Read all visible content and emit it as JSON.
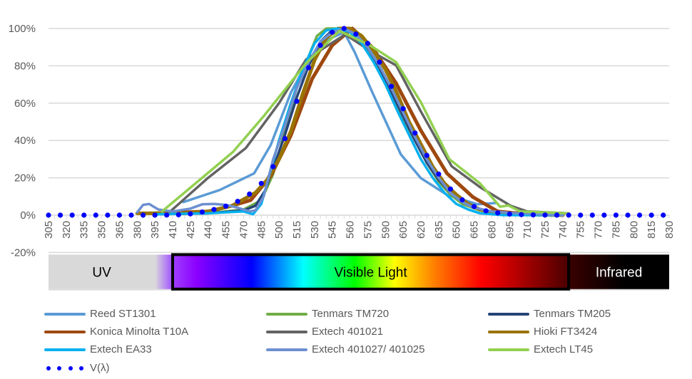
{
  "chart_data": {
    "type": "line",
    "title": "",
    "xlabel": "",
    "ylabel": "",
    "x_ticks": [
      305,
      320,
      335,
      350,
      365,
      380,
      395,
      410,
      425,
      440,
      455,
      470,
      485,
      500,
      515,
      530,
      545,
      560,
      575,
      590,
      605,
      620,
      635,
      650,
      665,
      680,
      695,
      710,
      725,
      740,
      755,
      770,
      785,
      800,
      815,
      830
    ],
    "y_ticks": [
      "100%",
      "80%",
      "60%",
      "40%",
      "20%",
      "0%",
      "-20%"
    ],
    "y_tick_values": [
      100,
      80,
      60,
      40,
      20,
      0,
      -20
    ],
    "xlim": [
      305,
      830
    ],
    "ylim": [
      -40,
      100
    ],
    "grid": "horizontal",
    "legend_position": "bottom",
    "spectrum_bands": [
      {
        "label": "UV",
        "from": 305,
        "to": 405
      },
      {
        "label": "Visible Light",
        "from": 410,
        "to": 745
      },
      {
        "label": "Infrared",
        "from": 745,
        "to": 830
      }
    ],
    "series": [
      {
        "name": "Reed ST1301",
        "color": "#5B9BD5",
        "style": "line",
        "points": [
          [
            419,
            7
          ],
          [
            450,
            13.5
          ],
          [
            479,
            22.4
          ],
          [
            493,
            37.6
          ],
          [
            510,
            65.6
          ],
          [
            523,
            80.9
          ],
          [
            536,
            92.4
          ],
          [
            555,
            98
          ],
          [
            564,
            87.3
          ],
          [
            579,
            65.6
          ],
          [
            603,
            32.6
          ],
          [
            620,
            19.8
          ],
          [
            642,
            10.9
          ],
          [
            668,
            5.8
          ],
          [
            683,
            6.5
          ]
        ]
      },
      {
        "name": "Tenmars TM720",
        "color": "#70AD47",
        "style": "line",
        "points": [
          [
            395,
            1
          ],
          [
            440,
            1
          ],
          [
            470,
            3
          ],
          [
            485,
            8
          ],
          [
            495,
            22
          ],
          [
            505,
            45
          ],
          [
            515,
            68
          ],
          [
            525,
            85
          ],
          [
            532,
            96
          ],
          [
            540,
            100
          ],
          [
            555,
            100
          ],
          [
            565,
            98
          ],
          [
            575,
            89
          ],
          [
            585,
            78
          ],
          [
            595,
            66
          ],
          [
            605,
            52
          ],
          [
            615,
            40
          ],
          [
            625,
            28
          ],
          [
            635,
            18
          ],
          [
            645,
            11
          ],
          [
            655,
            6
          ],
          [
            670,
            2.5
          ],
          [
            690,
            1
          ],
          [
            740,
            0
          ]
        ]
      },
      {
        "name": "Tenmars TM205",
        "color": "#264478",
        "style": "line",
        "points": [
          [
            395,
            0.5
          ],
          [
            440,
            1
          ],
          [
            470,
            2.5
          ],
          [
            480,
            5
          ],
          [
            488,
            13
          ],
          [
            495,
            25
          ],
          [
            505,
            43
          ],
          [
            515,
            63
          ],
          [
            525,
            80
          ],
          [
            535,
            93
          ],
          [
            545,
            99
          ],
          [
            555,
            100
          ],
          [
            565,
            98
          ],
          [
            575,
            90
          ],
          [
            585,
            79
          ],
          [
            595,
            66
          ],
          [
            605,
            53
          ],
          [
            615,
            40
          ],
          [
            625,
            28
          ],
          [
            635,
            19
          ],
          [
            645,
            12
          ],
          [
            655,
            7
          ],
          [
            665,
            4
          ],
          [
            680,
            1.5
          ],
          [
            700,
            0.5
          ],
          [
            740,
            0
          ]
        ]
      },
      {
        "name": "Konica Minolta T10A",
        "color": "#9E480E",
        "style": "line",
        "points": [
          [
            395,
            1
          ],
          [
            440,
            2
          ],
          [
            460,
            5
          ],
          [
            476,
            8
          ],
          [
            493,
            21
          ],
          [
            510,
            42.7
          ],
          [
            528,
            73
          ],
          [
            545,
            91
          ],
          [
            562,
            100
          ],
          [
            579,
            89.8
          ],
          [
            599,
            70.7
          ],
          [
            620,
            45.3
          ],
          [
            642,
            22.4
          ],
          [
            664,
            9.7
          ],
          [
            685,
            2
          ],
          [
            710,
            0.5
          ],
          [
            740,
            0
          ]
        ]
      },
      {
        "name": "Extech 401021",
        "color": "#636363",
        "style": "line",
        "points": [
          [
            405,
            1
          ],
          [
            408,
            2
          ],
          [
            440,
            20
          ],
          [
            472,
            36
          ],
          [
            500,
            60
          ],
          [
            523,
            83.5
          ],
          [
            556,
            96.8
          ],
          [
            579,
            87.3
          ],
          [
            599,
            80.3
          ],
          [
            620,
            55.5
          ],
          [
            646,
            26.2
          ],
          [
            670,
            15
          ],
          [
            696,
            5
          ],
          [
            710,
            2
          ],
          [
            745,
            1
          ]
        ]
      },
      {
        "name": "Hioki FT3424",
        "color": "#997300",
        "style": "line",
        "points": [
          [
            380,
            1
          ],
          [
            400,
            1
          ],
          [
            420,
            1
          ],
          [
            440,
            2
          ],
          [
            460,
            5
          ],
          [
            480,
            12
          ],
          [
            490,
            19
          ],
          [
            500,
            30
          ],
          [
            510,
            45
          ],
          [
            520,
            65
          ],
          [
            530,
            83
          ],
          [
            540,
            95
          ],
          [
            550,
            100
          ],
          [
            560,
            100
          ],
          [
            570,
            96
          ],
          [
            580,
            88
          ],
          [
            590,
            78
          ],
          [
            600,
            65
          ],
          [
            610,
            50
          ],
          [
            620,
            38
          ],
          [
            630,
            26
          ],
          [
            640,
            17
          ],
          [
            650,
            11
          ],
          [
            660,
            6
          ],
          [
            670,
            3
          ],
          [
            680,
            1.5
          ],
          [
            700,
            0.5
          ],
          [
            740,
            0
          ]
        ]
      },
      {
        "name": "Extech EA33",
        "color": "#00B0F0",
        "style": "line",
        "points": [
          [
            395,
            0.5
          ],
          [
            440,
            1
          ],
          [
            470,
            2
          ],
          [
            478,
            0.5
          ],
          [
            485,
            6
          ],
          [
            492,
            22
          ],
          [
            500,
            40
          ],
          [
            510,
            60
          ],
          [
            520,
            78
          ],
          [
            530,
            92
          ],
          [
            540,
            99
          ],
          [
            550,
            100
          ],
          [
            560,
            98
          ],
          [
            570,
            92
          ],
          [
            580,
            82
          ],
          [
            590,
            70
          ],
          [
            600,
            56
          ],
          [
            610,
            43
          ],
          [
            620,
            30
          ],
          [
            630,
            20
          ],
          [
            640,
            12
          ],
          [
            650,
            6
          ],
          [
            660,
            3
          ],
          [
            670,
            1
          ],
          [
            690,
            0
          ],
          [
            740,
            0
          ]
        ]
      },
      {
        "name": "Extech 401027/ 401025",
        "color": "#6D8FD1",
        "style": "line",
        "points": [
          [
            380,
            1.5
          ],
          [
            385,
            5.5
          ],
          [
            390,
            6
          ],
          [
            398,
            3
          ],
          [
            410,
            2
          ],
          [
            425,
            3.5
          ],
          [
            435,
            5.8
          ],
          [
            445,
            6
          ],
          [
            455,
            5.5
          ],
          [
            465,
            4
          ],
          [
            475,
            2
          ],
          [
            480,
            2.5
          ],
          [
            487,
            10
          ],
          [
            495,
            30
          ],
          [
            505,
            48
          ],
          [
            515,
            68
          ],
          [
            525,
            82
          ],
          [
            535,
            93
          ],
          [
            545,
            98
          ],
          [
            555,
            100
          ],
          [
            565,
            97
          ],
          [
            575,
            90
          ],
          [
            585,
            80
          ],
          [
            595,
            68
          ],
          [
            605,
            55
          ],
          [
            615,
            42
          ],
          [
            625,
            30
          ],
          [
            635,
            20
          ],
          [
            645,
            12
          ],
          [
            655,
            7
          ],
          [
            665,
            4
          ],
          [
            680,
            2
          ],
          [
            700,
            1
          ],
          [
            740,
            0
          ]
        ]
      },
      {
        "name": "Extech LT45",
        "color": "#92D050",
        "style": "line",
        "points": [
          [
            401,
            2
          ],
          [
            461,
            33.8
          ],
          [
            487,
            53
          ],
          [
            523,
            81.5
          ],
          [
            551,
            98.7
          ],
          [
            577,
            91
          ],
          [
            599,
            82
          ],
          [
            620,
            60.5
          ],
          [
            644,
            30
          ],
          [
            670,
            17
          ],
          [
            687,
            4.5
          ],
          [
            694,
            5.2
          ],
          [
            704,
            2
          ],
          [
            745,
            1
          ]
        ]
      },
      {
        "name": "V(λ)",
        "color": "#0000FF",
        "style": "dots",
        "points": [
          [
            305,
            0
          ],
          [
            315,
            0
          ],
          [
            325,
            0
          ],
          [
            335,
            0
          ],
          [
            345,
            0
          ],
          [
            355,
            0
          ],
          [
            365,
            0
          ],
          [
            375,
            0
          ],
          [
            385,
            0.01
          ],
          [
            395,
            0.02
          ],
          [
            405,
            0.07
          ],
          [
            415,
            0.2
          ],
          [
            425,
            0.7
          ],
          [
            435,
            1.7
          ],
          [
            445,
            3
          ],
          [
            455,
            4.8
          ],
          [
            465,
            7.4
          ],
          [
            475,
            11.3
          ],
          [
            485,
            17
          ],
          [
            495,
            26
          ],
          [
            505,
            41
          ],
          [
            515,
            61
          ],
          [
            525,
            79
          ],
          [
            535,
            91
          ],
          [
            545,
            98
          ],
          [
            555,
            100
          ],
          [
            565,
            97
          ],
          [
            575,
            92
          ],
          [
            585,
            82
          ],
          [
            595,
            69
          ],
          [
            605,
            57
          ],
          [
            615,
            44
          ],
          [
            625,
            32
          ],
          [
            635,
            22
          ],
          [
            645,
            14
          ],
          [
            655,
            8.2
          ],
          [
            665,
            4.6
          ],
          [
            675,
            2.3
          ],
          [
            685,
            1.2
          ],
          [
            695,
            0.6
          ],
          [
            705,
            0.3
          ],
          [
            715,
            0.15
          ],
          [
            725,
            0.07
          ],
          [
            735,
            0.04
          ],
          [
            745,
            0.02
          ],
          [
            755,
            0
          ],
          [
            765,
            0
          ],
          [
            775,
            0
          ],
          [
            785,
            0
          ],
          [
            795,
            0
          ],
          [
            805,
            0
          ],
          [
            815,
            0
          ],
          [
            825,
            0
          ]
        ]
      }
    ]
  }
}
